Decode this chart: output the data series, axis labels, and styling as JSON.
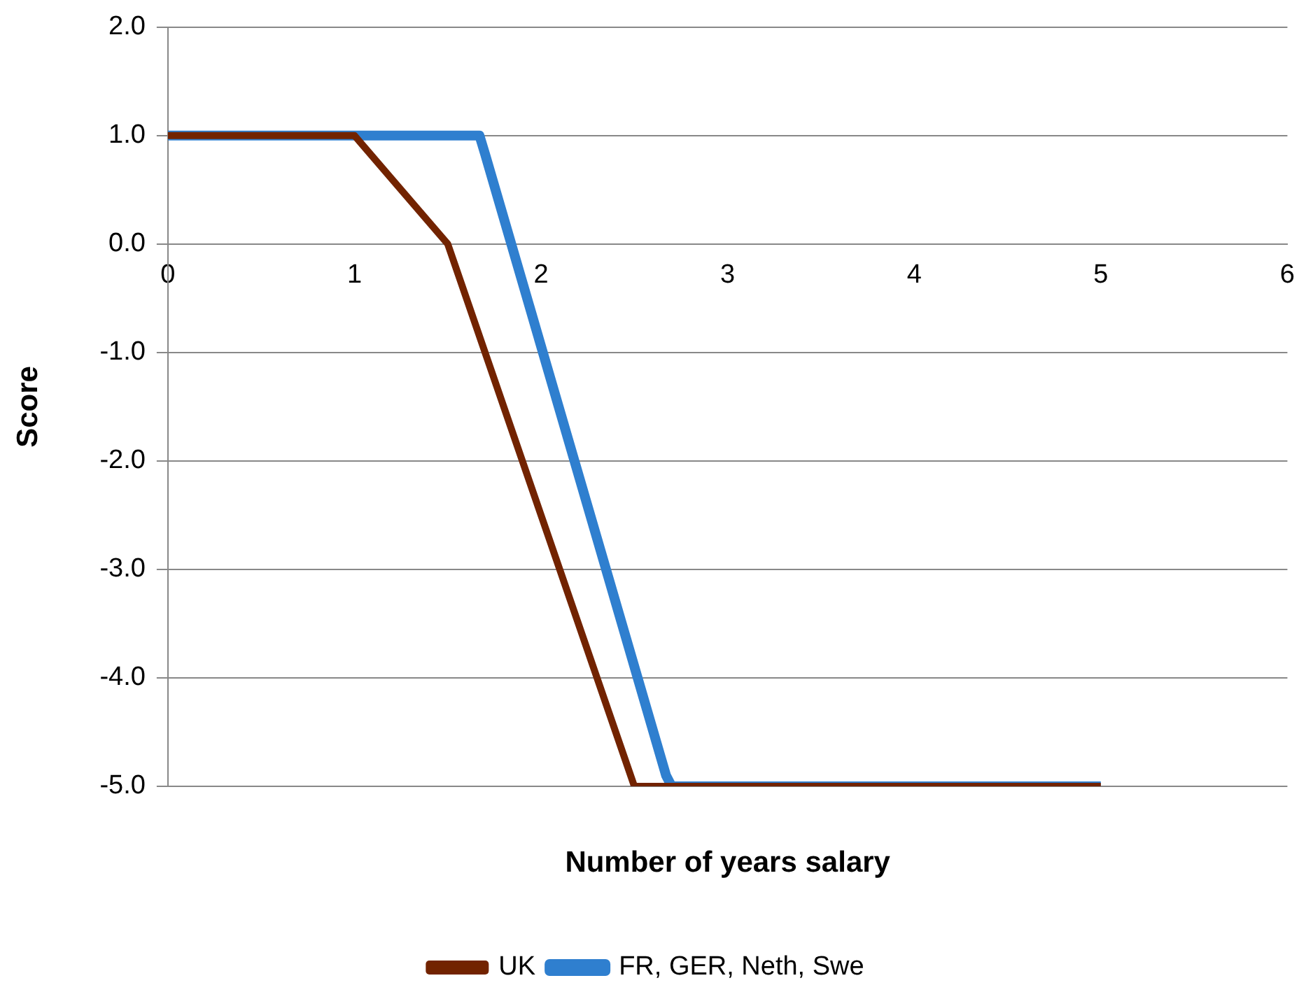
{
  "chart_data": {
    "type": "line",
    "xlabel": "Number of years salary",
    "ylabel": "Score",
    "xlim": [
      0,
      6
    ],
    "xticks": [
      0,
      1,
      2,
      3,
      4,
      5,
      6
    ],
    "ylim": [
      -5,
      2
    ],
    "yticks": [
      {
        "value": -5,
        "label": "-5.0"
      },
      {
        "value": -4,
        "label": "-4.0"
      },
      {
        "value": -3,
        "label": "-3.0"
      },
      {
        "value": -2,
        "label": "-2.0"
      },
      {
        "value": -1,
        "label": "-1.0"
      },
      {
        "value": 0,
        "label": "0.0"
      },
      {
        "value": 1,
        "label": "1.0"
      },
      {
        "value": 2,
        "label": "2.0"
      }
    ],
    "grid": "y",
    "legend": "bottom",
    "marker": "none",
    "line_style": "solid",
    "series": [
      {
        "name": "FR, GER, Neth, Swe",
        "color": "#2f7fcf",
        "x": [
          0,
          1,
          1.67,
          1.7,
          2.67,
          2.7,
          5
        ],
        "values": [
          1,
          1,
          1,
          0.83,
          -4.9,
          -5,
          -5
        ]
      },
      {
        "name": "UK",
        "color": "#722300",
        "x": [
          0,
          1,
          1.5,
          2.5,
          5
        ],
        "values": [
          1,
          1,
          0,
          -5,
          -5
        ]
      }
    ]
  }
}
